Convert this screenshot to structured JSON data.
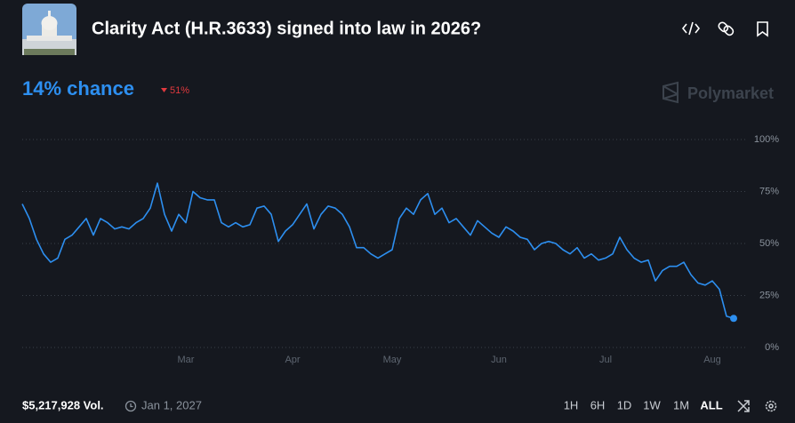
{
  "chart_data": {
    "type": "line",
    "title": "Clarity Act (H.R.3633) signed into law in 2026?",
    "headline": "14% chance",
    "change": "51%",
    "brand": "Polymarket",
    "color": "#2d8ff0",
    "categories": [
      null,
      null,
      null,
      null,
      null,
      null,
      null,
      null,
      null,
      null,
      null,
      null,
      null,
      null,
      null,
      null,
      null,
      null,
      null,
      null,
      null,
      null,
      null,
      "Mar",
      null,
      null,
      null,
      null,
      null,
      null,
      null,
      null,
      null,
      null,
      null,
      null,
      null,
      null,
      "Apr",
      null,
      null,
      null,
      null,
      null,
      null,
      null,
      null,
      null,
      null,
      null,
      null,
      null,
      "May",
      null,
      null,
      null,
      null,
      null,
      null,
      null,
      null,
      null,
      null,
      null,
      null,
      null,
      null,
      "Jun",
      null,
      null,
      null,
      null,
      null,
      null,
      null,
      null,
      null,
      null,
      null,
      null,
      null,
      null,
      "Jul",
      null,
      null,
      null,
      null,
      null,
      null,
      null,
      null,
      null,
      null,
      null,
      null,
      null,
      null,
      "Aug",
      null,
      null,
      null
    ],
    "values": [
      69,
      62,
      52,
      45,
      41,
      43,
      52,
      54,
      58,
      62,
      54,
      62,
      60,
      57,
      58,
      57,
      60,
      62,
      67,
      79,
      64,
      56,
      64,
      60,
      75,
      72,
      71,
      71,
      60,
      58,
      60,
      58,
      59,
      67,
      68,
      64,
      51,
      56,
      59,
      64,
      69,
      57,
      64,
      68,
      67,
      64,
      58,
      48,
      48,
      45,
      43,
      45,
      47,
      62,
      67,
      64,
      71,
      74,
      64,
      67,
      60,
      62,
      58,
      54,
      61,
      58,
      55,
      53,
      58,
      56,
      53,
      52,
      47,
      50,
      51,
      50,
      47,
      45,
      48,
      43,
      45,
      42,
      43,
      45,
      53,
      47,
      43,
      41,
      42,
      32,
      37,
      39,
      39,
      41,
      35,
      31,
      30,
      32,
      28,
      15,
      14
    ],
    "ylim": [
      0,
      100
    ],
    "yticks": [
      {
        "value": 0,
        "label": "0%"
      },
      {
        "value": 25,
        "label": "25%"
      },
      {
        "value": 50,
        "label": "50%"
      },
      {
        "value": 75,
        "label": "75%"
      },
      {
        "value": 100,
        "label": "100%"
      }
    ],
    "grid": true
  },
  "footer": {
    "volume": "$5,217,928 Vol.",
    "end_date": "Jan 1, 2027",
    "ranges": [
      "1H",
      "6H",
      "1D",
      "1W",
      "1M",
      "ALL"
    ]
  }
}
